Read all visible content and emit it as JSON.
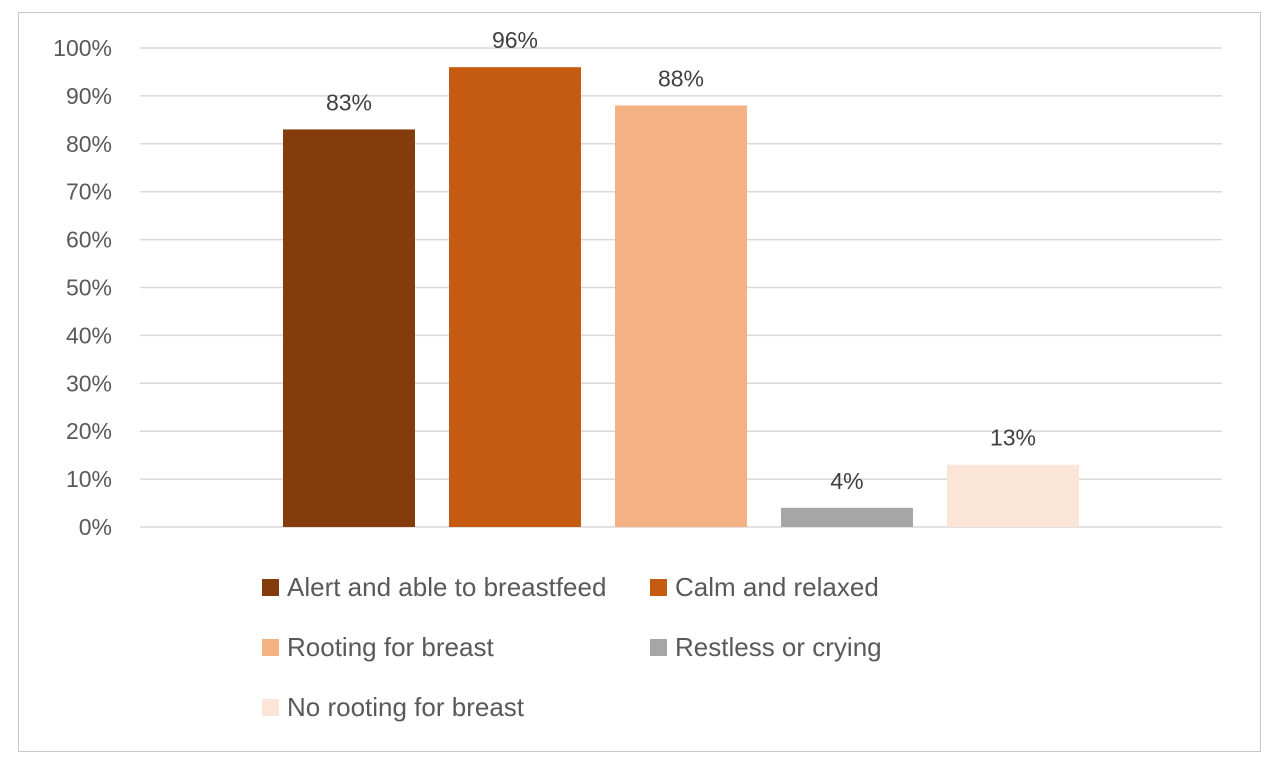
{
  "chart_data": {
    "type": "bar",
    "categories": [
      "Alert and able to breastfeed",
      "Calm and relaxed",
      "Rooting for breast",
      "Restless or crying",
      "No rooting for breast"
    ],
    "values": [
      83,
      96,
      88,
      4,
      13
    ],
    "data_labels": [
      "83%",
      "96%",
      "88%",
      "4%",
      "13%"
    ],
    "colors": [
      "#843c0c",
      "#c55a11",
      "#f4b183",
      "#a6a6a6",
      "#fbe5d6"
    ],
    "ylim": [
      0,
      100
    ],
    "y_ticks": [
      "0%",
      "10%",
      "20%",
      "30%",
      "40%",
      "50%",
      "60%",
      "70%",
      "80%",
      "90%",
      "100%"
    ],
    "grid": true,
    "legend_position": "bottom",
    "title": "",
    "xlabel": "",
    "ylabel": ""
  },
  "legend": {
    "items": [
      {
        "label": "Alert and able to breastfeed",
        "color": "#843c0c"
      },
      {
        "label": "Calm and relaxed",
        "color": "#c55a11"
      },
      {
        "label": "Rooting for breast",
        "color": "#f4b183"
      },
      {
        "label": "Restless or crying",
        "color": "#a6a6a6"
      },
      {
        "label": "No rooting for breast",
        "color": "#fbe5d6"
      }
    ]
  }
}
